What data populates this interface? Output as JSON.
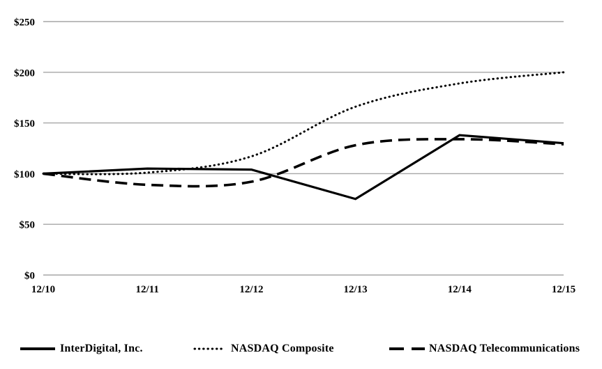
{
  "chart_data": {
    "type": "line",
    "title": "",
    "xlabel": "",
    "ylabel": "",
    "categories": [
      "12/10",
      "12/11",
      "12/12",
      "12/13",
      "12/14",
      "12/15"
    ],
    "series": [
      {
        "name": "InterDigital, Inc.",
        "values": [
          100,
          105,
          104,
          75,
          138,
          130
        ],
        "style": "solid",
        "smooth": false
      },
      {
        "name": "NASDAQ Composite",
        "values": [
          100,
          101,
          117,
          166,
          189,
          200
        ],
        "style": "dotted",
        "smooth": true
      },
      {
        "name": "NASDAQ Telecommunications",
        "values": [
          100,
          89,
          92,
          128,
          134,
          129
        ],
        "style": "dashed",
        "smooth": true
      }
    ],
    "y_ticks": [
      {
        "label": "$250",
        "value": 250
      },
      {
        "label": "$200",
        "value": 200
      },
      {
        "label": "$150",
        "value": 150
      },
      {
        "label": "$100",
        "value": 100
      },
      {
        "label": "$50",
        "value": 50
      },
      {
        "label": "$0",
        "value": 0
      }
    ],
    "ylim": [
      0,
      250
    ],
    "grid": true,
    "legend_position": "bottom",
    "colors": {
      "line": "#000000",
      "grid": "#a6a6a6",
      "text": "#000000",
      "background": "#ffffff"
    }
  },
  "legend": {
    "items": [
      {
        "label": "InterDigital, Inc.",
        "style": "solid"
      },
      {
        "label": "NASDAQ Composite",
        "style": "dotted"
      },
      {
        "label": "NASDAQ Telecommunications",
        "style": "dashed"
      }
    ]
  }
}
